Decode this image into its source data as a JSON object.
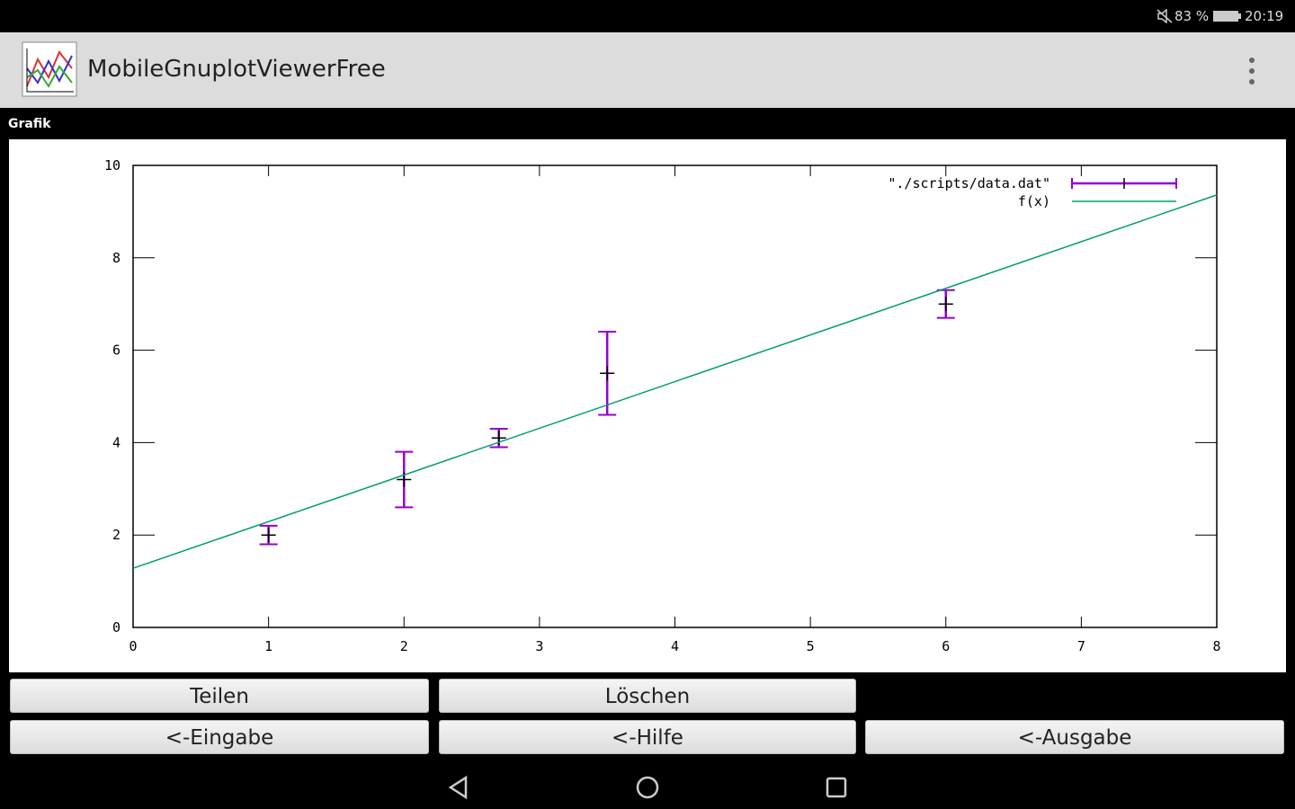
{
  "status_bar": {
    "battery": "83 %",
    "time": "20:19"
  },
  "app_bar": {
    "title": "MobileGnuplotViewerFree"
  },
  "panel_label": "Grafik",
  "chart_data": {
    "type": "errorbar",
    "series": [
      {
        "name": "\"./scripts/data.dat\"",
        "type": "errorbar",
        "color": "#9400d3",
        "x": [
          1,
          2,
          2.7,
          3.5,
          6
        ],
        "values": [
          2,
          3.2,
          4.1,
          5.5,
          7
        ],
        "errors": [
          0.2,
          0.6,
          0.2,
          0.9,
          0.3
        ]
      },
      {
        "name": "f(x)",
        "type": "line",
        "color": "#009e73",
        "x": [
          0,
          8
        ],
        "values": [
          1.28,
          9.36
        ]
      }
    ],
    "xlim": [
      0,
      8
    ],
    "ylim": [
      0,
      10
    ],
    "xticks": [
      0,
      1,
      2,
      3,
      4,
      5,
      6,
      7,
      8
    ],
    "yticks": [
      0,
      2,
      4,
      6,
      8,
      10
    ],
    "legend": "top-right"
  },
  "buttons": [
    "Teilen",
    "Löschen",
    "<-Eingabe",
    "<-Hilfe",
    "<-Ausgabe"
  ]
}
